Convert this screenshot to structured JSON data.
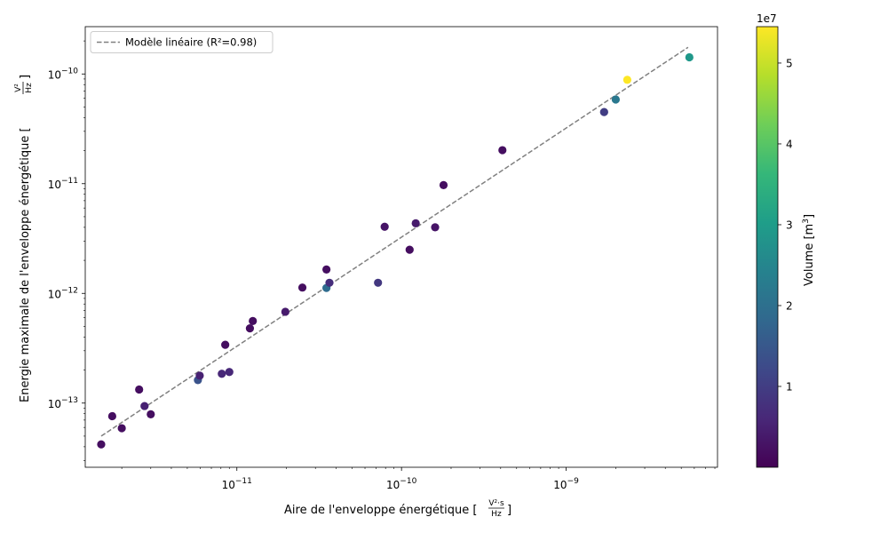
{
  "chart_data": {
    "type": "scatter",
    "xscale": "log",
    "yscale": "log",
    "xlim": [
      1.2e-12,
      8.3e-09
    ],
    "ylim": [
      2.6e-14,
      2.7e-10
    ],
    "xticks": [
      1e-11,
      1e-10,
      1e-09
    ],
    "xtick_labels": [
      {
        "base": "10",
        "exp": "−11"
      },
      {
        "base": "10",
        "exp": "−10"
      },
      {
        "base": "10",
        "exp": "−9"
      }
    ],
    "yticks": [
      1e-13,
      1e-12,
      1e-11,
      1e-10
    ],
    "ytick_labels": [
      {
        "base": "10",
        "exp": "−13"
      },
      {
        "base": "10",
        "exp": "−12"
      },
      {
        "base": "10",
        "exp": "−11"
      },
      {
        "base": "10",
        "exp": "−10"
      }
    ],
    "xlabel": {
      "text": "Aire de l'enveloppe énergétique [",
      "frac_num": "V²·s",
      "frac_den": "Hz",
      "close": "]"
    },
    "ylabel": {
      "text": "Energie maximale de l'enveloppe énergétique [",
      "frac_num": "V²",
      "frac_den": "Hz",
      "close": "]"
    },
    "grid": false,
    "legend": {
      "placement": "top-left",
      "label": "Modèle linéaire (R²=0.98)"
    },
    "fit_line": {
      "x": [
        1.5e-12,
        5.5e-09
      ],
      "y": [
        5e-14,
        1.75e-10
      ],
      "color": "#808080",
      "style": "dashed"
    },
    "colorbar": {
      "label": "Volume [m",
      "label_sup": "3",
      "label_close": "]",
      "offset_text": "1e7",
      "min": 0,
      "max": 5.45,
      "ticks": [
        1,
        2,
        3,
        4,
        5
      ],
      "tick_labels": [
        "1",
        "2",
        "3",
        "4",
        "5"
      ],
      "colormap": "viridis",
      "colormap_stops": [
        "#440154",
        "#482878",
        "#3e4989",
        "#31688e",
        "#26828e",
        "#1f9e89",
        "#35b779",
        "#6ece58",
        "#b5de2b",
        "#fde725"
      ]
    },
    "points": [
      {
        "x": 1.5e-12,
        "y": 4.2e-14,
        "v": 0.2
      },
      {
        "x": 1.75e-12,
        "y": 7.6e-14,
        "v": 0.2
      },
      {
        "x": 2e-12,
        "y": 5.9e-14,
        "v": 0.2
      },
      {
        "x": 2.55e-12,
        "y": 1.33e-13,
        "v": 0.2
      },
      {
        "x": 2.75e-12,
        "y": 9.4e-14,
        "v": 0.5
      },
      {
        "x": 3e-12,
        "y": 7.9e-14,
        "v": 0.2
      },
      {
        "x": 5.8e-12,
        "y": 1.62e-13,
        "v": 1.4
      },
      {
        "x": 5.95e-12,
        "y": 1.78e-13,
        "v": 0.5
      },
      {
        "x": 8.1e-12,
        "y": 1.85e-13,
        "v": 0.6
      },
      {
        "x": 8.5e-12,
        "y": 3.4e-13,
        "v": 0.2
      },
      {
        "x": 9e-12,
        "y": 1.92e-13,
        "v": 0.6
      },
      {
        "x": 1.2e-11,
        "y": 4.8e-13,
        "v": 0.2
      },
      {
        "x": 1.25e-11,
        "y": 5.6e-13,
        "v": 0.2
      },
      {
        "x": 1.97e-11,
        "y": 6.8e-13,
        "v": 0.4
      },
      {
        "x": 2.5e-11,
        "y": 1.13e-12,
        "v": 0.2
      },
      {
        "x": 3.5e-11,
        "y": 1.65e-12,
        "v": 0.2
      },
      {
        "x": 3.5e-11,
        "y": 1.12e-12,
        "v": 1.9
      },
      {
        "x": 3.65e-11,
        "y": 1.25e-12,
        "v": 0.7
      },
      {
        "x": 7.2e-11,
        "y": 1.25e-12,
        "v": 0.9
      },
      {
        "x": 7.9e-11,
        "y": 4.05e-12,
        "v": 0.3
      },
      {
        "x": 1.12e-10,
        "y": 2.5e-12,
        "v": 0.2
      },
      {
        "x": 1.22e-10,
        "y": 4.35e-12,
        "v": 0.4
      },
      {
        "x": 1.6e-10,
        "y": 4e-12,
        "v": 0.3
      },
      {
        "x": 1.8e-10,
        "y": 9.7e-12,
        "v": 0.2
      },
      {
        "x": 4.1e-10,
        "y": 2.02e-11,
        "v": 0.2
      },
      {
        "x": 1.7e-09,
        "y": 4.5e-11,
        "v": 1.0
      },
      {
        "x": 2e-09,
        "y": 5.85e-11,
        "v": 2.2
      },
      {
        "x": 2.35e-09,
        "y": 8.85e-11,
        "v": 5.45
      },
      {
        "x": 5.6e-09,
        "y": 1.42e-10,
        "v": 2.9
      }
    ]
  }
}
